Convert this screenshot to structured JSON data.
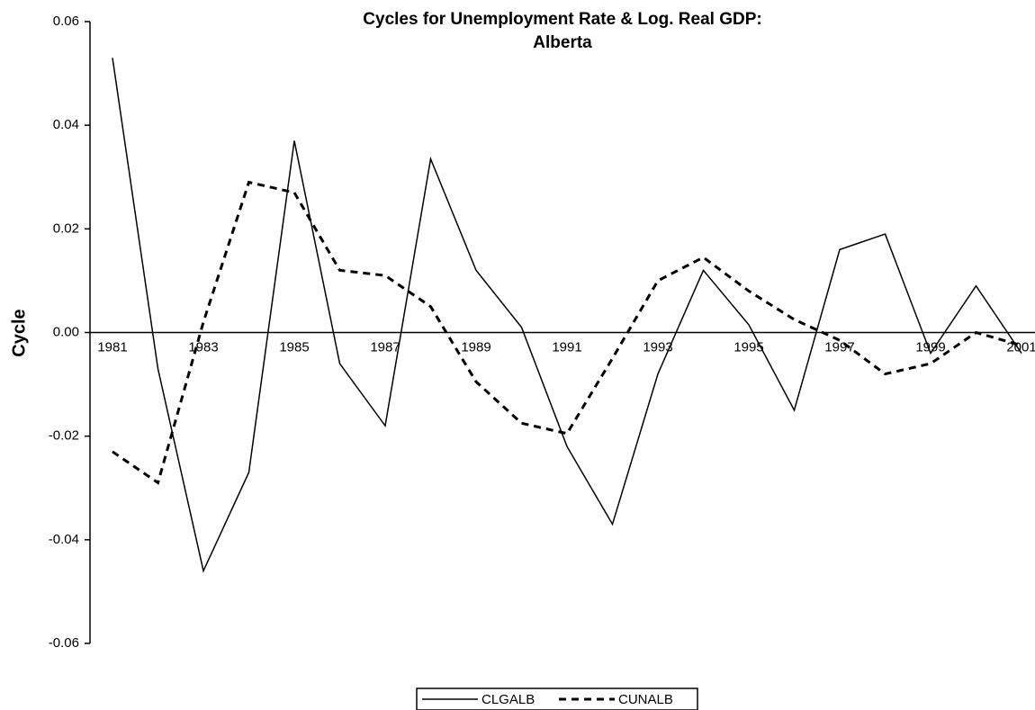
{
  "chart_data": {
    "type": "line",
    "title": [
      "Cycles for Unemployment Rate & Log. Real GDP:",
      "Alberta"
    ],
    "y_label": "Cycle",
    "categories": [
      "1981",
      null,
      "1983",
      null,
      "1985",
      null,
      "1987",
      null,
      "1989",
      null,
      "1991",
      null,
      "1993",
      null,
      "1995",
      null,
      "1997",
      null,
      "1999",
      null,
      "2001"
    ],
    "series": [
      {
        "name": "CLGALB",
        "color": "#000000",
        "style": "solid",
        "values": [
          0.053,
          -0.007,
          -0.046,
          -0.027,
          0.037,
          -0.006,
          -0.018,
          0.0335,
          0.012,
          0.001,
          -0.022,
          -0.037,
          -0.008,
          0.012,
          0.0015,
          -0.015,
          0.016,
          0.019,
          -0.004,
          0.009,
          -0.004
        ]
      },
      {
        "name": "CUNALB",
        "color": "#000000",
        "style": "dashed",
        "values": [
          -0.023,
          -0.029,
          0.002,
          0.029,
          0.027,
          0.012,
          0.011,
          0.005,
          -0.0095,
          -0.0175,
          -0.0195,
          -0.005,
          0.01,
          0.0145,
          0.008,
          0.0025,
          -0.0015,
          -0.008,
          -0.006,
          0,
          -0.0025
        ]
      }
    ],
    "ylim": [
      -0.06,
      0.06
    ],
    "yticks": [
      -0.06,
      -0.04,
      -0.02,
      {
        "value": 0,
        "label": "0.00"
      },
      0.02,
      0.04,
      0.06
    ],
    "grid": false,
    "legend": "bottom"
  }
}
